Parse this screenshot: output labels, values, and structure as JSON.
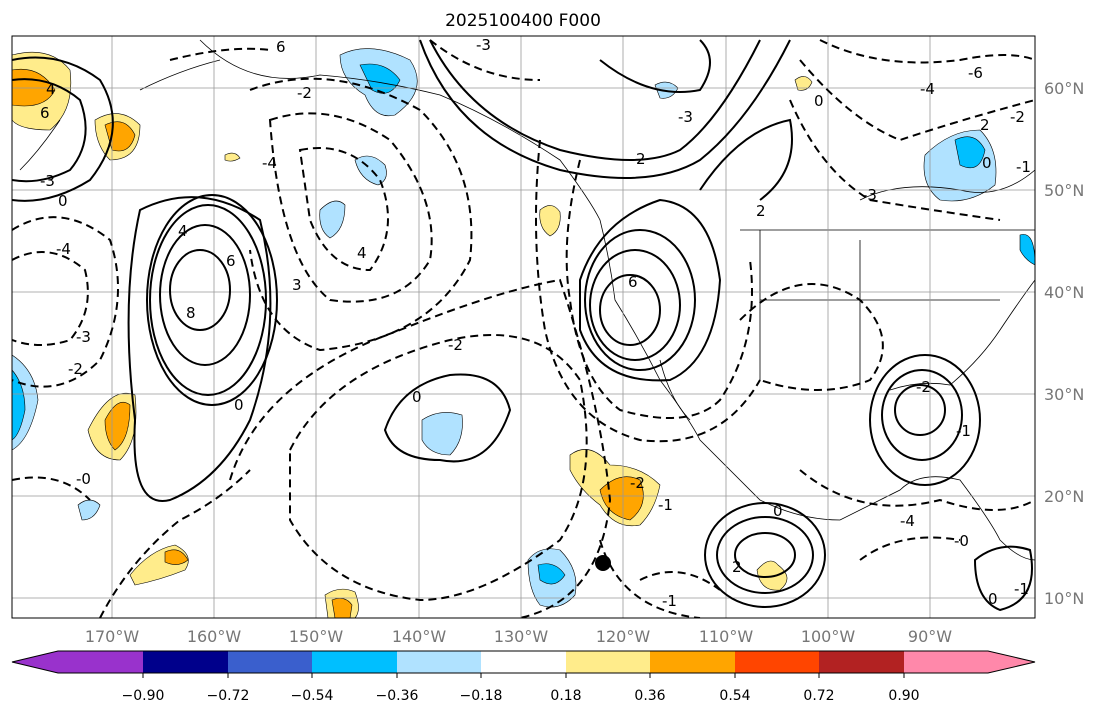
{
  "title": "2025100400 F000",
  "map": {
    "lon_ticks": [
      "170°W",
      "160°W",
      "150°W",
      "140°W",
      "130°W",
      "120°W",
      "110°W",
      "100°W",
      "90°W"
    ],
    "lat_ticks": [
      "60°N",
      "50°N",
      "40°N",
      "30°N",
      "20°N",
      "10°N"
    ],
    "contour_labels": [
      "6",
      "-3",
      "4",
      "6",
      "-4",
      "-3",
      "-2",
      "0",
      "4",
      "6",
      "8",
      "-4",
      "-3",
      "-2",
      "0",
      "3",
      "-2",
      "0",
      "4",
      "2",
      "6",
      "-3",
      "0",
      "2",
      "-1",
      "-2",
      "-1",
      "0",
      "2",
      "-2",
      "-1",
      "-6",
      "-4",
      "-2",
      "-3",
      "0",
      "2",
      "-1",
      "0",
      "-1",
      "-0",
      "-4",
      "-0"
    ],
    "marker": "black-dot"
  },
  "colorbar": {
    "colors": [
      "#9932CC",
      "#00008B",
      "#3A5FCD",
      "#00BFFF",
      "#B0E2FF",
      "#FFFFFF",
      "#FFEC8B",
      "#FFA500",
      "#FF4500",
      "#B22222",
      "#FF88AA"
    ],
    "ticks": [
      "−0.90",
      "−0.72",
      "−0.54",
      "−0.36",
      "−0.18",
      "0.18",
      "0.36",
      "0.54",
      "0.72",
      "0.90"
    ]
  }
}
